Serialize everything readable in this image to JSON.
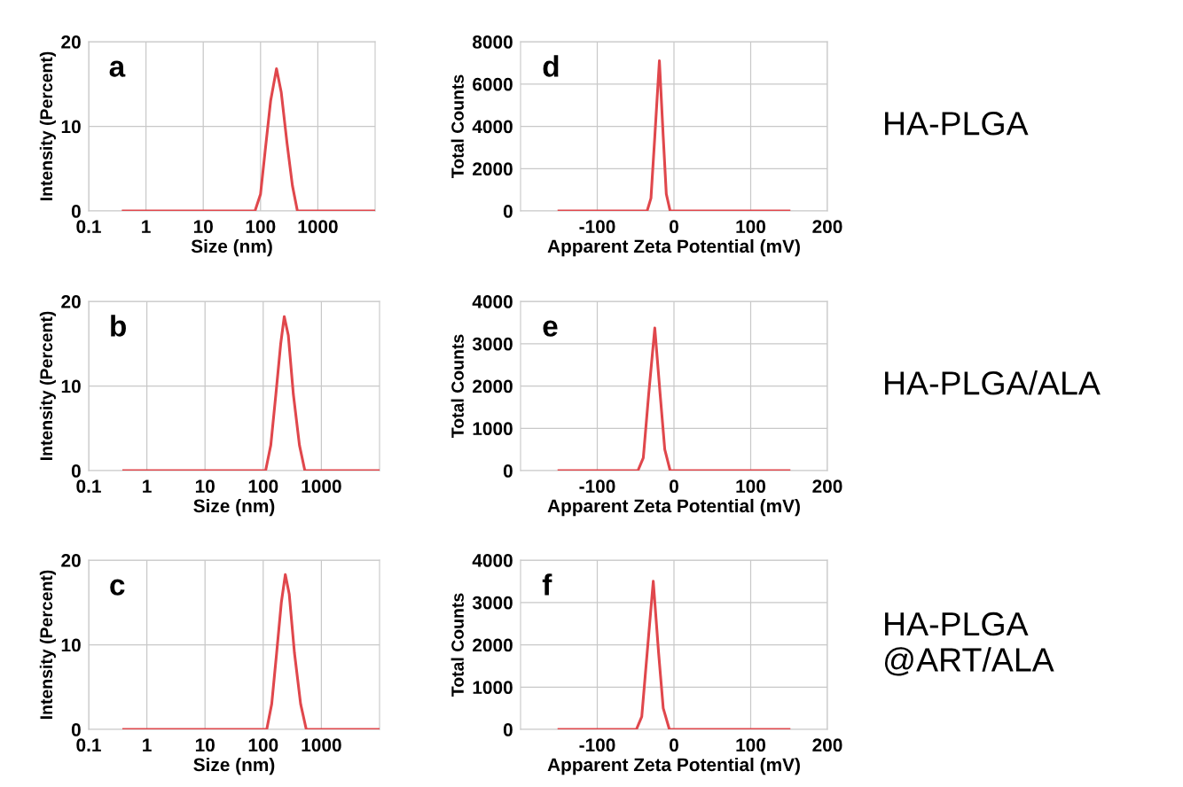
{
  "chart_data": [
    {
      "type": "line",
      "xlabel": "Size (nm)",
      "ylabel": "Intensity (Percent)",
      "annotations": [
        "a"
      ],
      "log": "x",
      "grid": true,
      "xlim": [
        0.1,
        10000
      ],
      "xticks": [
        0.1,
        1,
        10,
        100,
        1000
      ],
      "ylim": [
        0,
        20
      ],
      "yticks": [
        0,
        10,
        20
      ],
      "series": [
        {
          "color": "#e0474c",
          "x": [
            0.4,
            80,
            100,
            120,
            150,
            190,
            230,
            290,
            360,
            440,
            10000
          ],
          "values": [
            0,
            0,
            2,
            7,
            13,
            16.8,
            14,
            8,
            3,
            0,
            0
          ]
        }
      ]
    },
    {
      "type": "line",
      "xlabel": "Apparent Zeta Potential (mV)",
      "ylabel": "Total Counts",
      "annotations": [
        "d",
        "HA-PLGA"
      ],
      "grid": true,
      "xlim": [
        -200,
        200
      ],
      "xticks": [
        -100,
        0,
        100,
        200
      ],
      "ylim": [
        0,
        8000
      ],
      "yticks": [
        0,
        2000,
        4000,
        6000,
        8000
      ],
      "series": [
        {
          "color": "#e0474c",
          "x": [
            -150,
            -35,
            -30,
            -25,
            -19,
            -14,
            -10,
            -5,
            150
          ],
          "values": [
            0,
            0,
            600,
            3500,
            7100,
            3500,
            800,
            0,
            0
          ]
        }
      ]
    },
    {
      "type": "line",
      "xlabel": "Size (nm)",
      "ylabel": "Intensity (Percent)",
      "annotations": [
        "b"
      ],
      "log": "x",
      "grid": true,
      "xlim": [
        0.1,
        10000
      ],
      "xticks": [
        0.1,
        1,
        10,
        100,
        1000
      ],
      "ylim": [
        0,
        20
      ],
      "yticks": [
        0,
        10,
        20
      ],
      "series": [
        {
          "color": "#e0474c",
          "x": [
            0.4,
            110,
            135,
            165,
            200,
            230,
            270,
            330,
            420,
            520,
            10000
          ],
          "values": [
            0,
            0,
            3,
            9,
            15,
            18.2,
            16,
            9,
            3,
            0,
            0
          ]
        }
      ]
    },
    {
      "type": "line",
      "xlabel": "Apparent Zeta Potential (mV)",
      "ylabel": "Total Counts",
      "annotations": [
        "e",
        "HA-PLGA/ALA"
      ],
      "grid": true,
      "xlim": [
        -200,
        200
      ],
      "xticks": [
        -100,
        0,
        100,
        200
      ],
      "ylim": [
        0,
        4000
      ],
      "yticks": [
        0,
        1000,
        2000,
        3000,
        4000
      ],
      "series": [
        {
          "color": "#e0474c",
          "x": [
            -150,
            -47,
            -40,
            -33,
            -25,
            -18,
            -12,
            -5,
            150
          ],
          "values": [
            0,
            0,
            300,
            1800,
            3370,
            1800,
            500,
            0,
            0
          ]
        }
      ]
    },
    {
      "type": "line",
      "xlabel": "Size (nm)",
      "ylabel": "Intensity (Percent)",
      "annotations": [
        "c"
      ],
      "log": "x",
      "grid": true,
      "xlim": [
        0.1,
        10000
      ],
      "xticks": [
        0.1,
        1,
        10,
        100,
        1000
      ],
      "ylim": [
        0,
        20
      ],
      "yticks": [
        0,
        10,
        20
      ],
      "series": [
        {
          "color": "#e0474c",
          "x": [
            0.4,
            115,
            140,
            170,
            205,
            240,
            280,
            345,
            440,
            550,
            10000
          ],
          "values": [
            0,
            0,
            3,
            9,
            15,
            18.3,
            16,
            9,
            3,
            0,
            0
          ]
        }
      ]
    },
    {
      "type": "line",
      "xlabel": "Apparent Zeta Potential (mV)",
      "ylabel": "Total Counts",
      "annotations": [
        "f",
        "HA-PLGA\n@ART/ALA"
      ],
      "grid": true,
      "xlim": [
        -200,
        200
      ],
      "xticks": [
        -100,
        0,
        100,
        200
      ],
      "ylim": [
        0,
        4000
      ],
      "yticks": [
        0,
        1000,
        2000,
        3000,
        4000
      ],
      "series": [
        {
          "color": "#e0474c",
          "x": [
            -150,
            -49,
            -42,
            -35,
            -27,
            -20,
            -14,
            -6,
            150
          ],
          "values": [
            0,
            0,
            300,
            1800,
            3500,
            1800,
            500,
            0,
            0
          ]
        }
      ]
    }
  ]
}
